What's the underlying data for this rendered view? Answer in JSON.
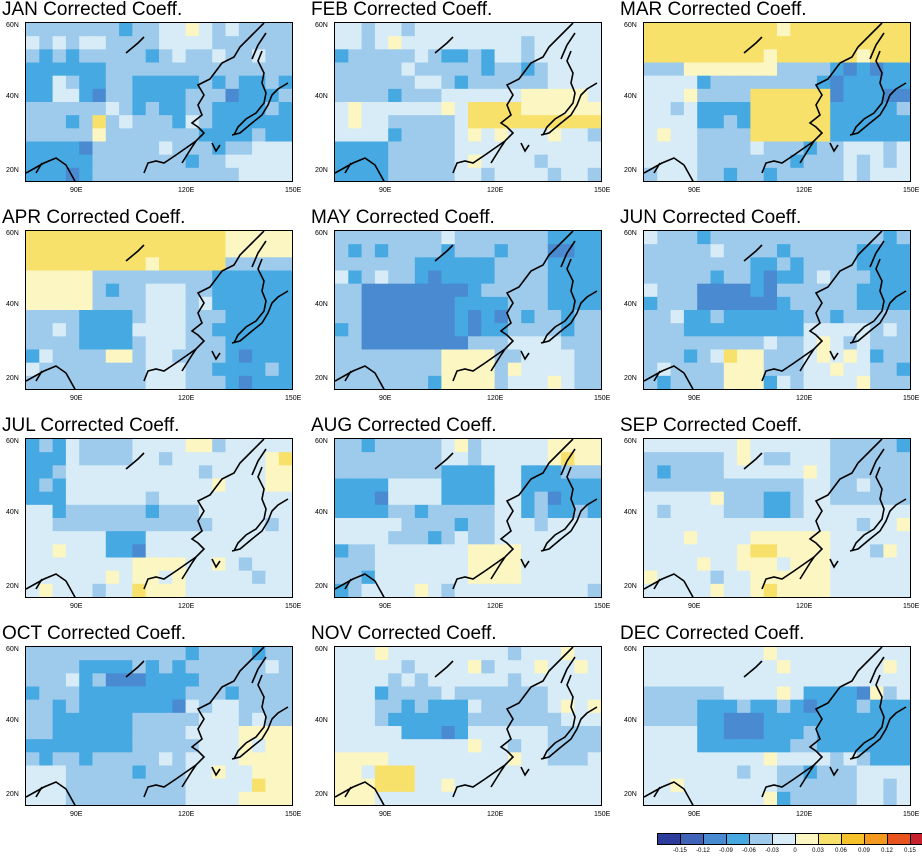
{
  "panels": [
    {
      "title": "JAN Corrected Coeff.",
      "fields": "light-blue-dominant, blue Japan, yellow spots near 35N 95E"
    },
    {
      "title": "FEB Corrected Coeff.",
      "fields": "light-blue with yellow band south of Japan"
    },
    {
      "title": "MAR Corrected Coeff.",
      "fields": "yellow band north 45-60N, yellow central China"
    },
    {
      "title": "APR Corrected Coeff.",
      "fields": "yellow north, blue Tibet and Japan"
    },
    {
      "title": "MAY Corrected Coeff.",
      "fields": "dark blue central Asia"
    },
    {
      "title": "JUN Corrected Coeff.",
      "fields": "dark blue Tibet, blue Manchuria"
    },
    {
      "title": "JUL Corrected Coeff.",
      "fields": "pale blue dominant"
    },
    {
      "title": "AUG Corrected Coeff.",
      "fields": "pale blue with blue patches"
    },
    {
      "title": "SEP Corrected Coeff.",
      "fields": "pale blue with yellow south"
    },
    {
      "title": "OCT Corrected Coeff.",
      "fields": "blue band north"
    },
    {
      "title": "NOV Corrected Coeff.",
      "fields": "blue central band, yellow southwest"
    },
    {
      "title": "DEC Corrected Coeff.",
      "fields": "dark blue Tibet and Japan"
    }
  ],
  "axes": {
    "y_ticks": [
      "60N",
      "40N",
      "20N"
    ],
    "x_ticks": [
      "90E",
      "120E",
      "150E"
    ]
  },
  "colorbar": {
    "labels": [
      "-0.15",
      "-0.12",
      "-0.09",
      "-0.06",
      "-0.03",
      "0",
      "0.03",
      "0.06",
      "0.09",
      "0.12",
      "0.15"
    ],
    "colors": [
      "#2b3c9c",
      "#3f63b8",
      "#4a8ad0",
      "#47a9e2",
      "#9ecbec",
      "#d7ecf7",
      "#fbf6c2",
      "#f8e16b",
      "#f6c12a",
      "#f39a1e",
      "#e8541f",
      "#c8202c"
    ]
  }
}
